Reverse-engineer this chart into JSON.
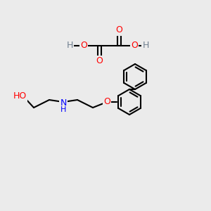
{
  "background_color": "#ebebeb",
  "figsize": [
    3.0,
    3.0
  ],
  "dpi": 100,
  "atom_colors": {
    "C": "#000000",
    "H": "#708090",
    "O": "#ff0000",
    "N": "#0000ff"
  },
  "bond_color": "#000000",
  "bond_width": 1.5,
  "font_size": 9
}
